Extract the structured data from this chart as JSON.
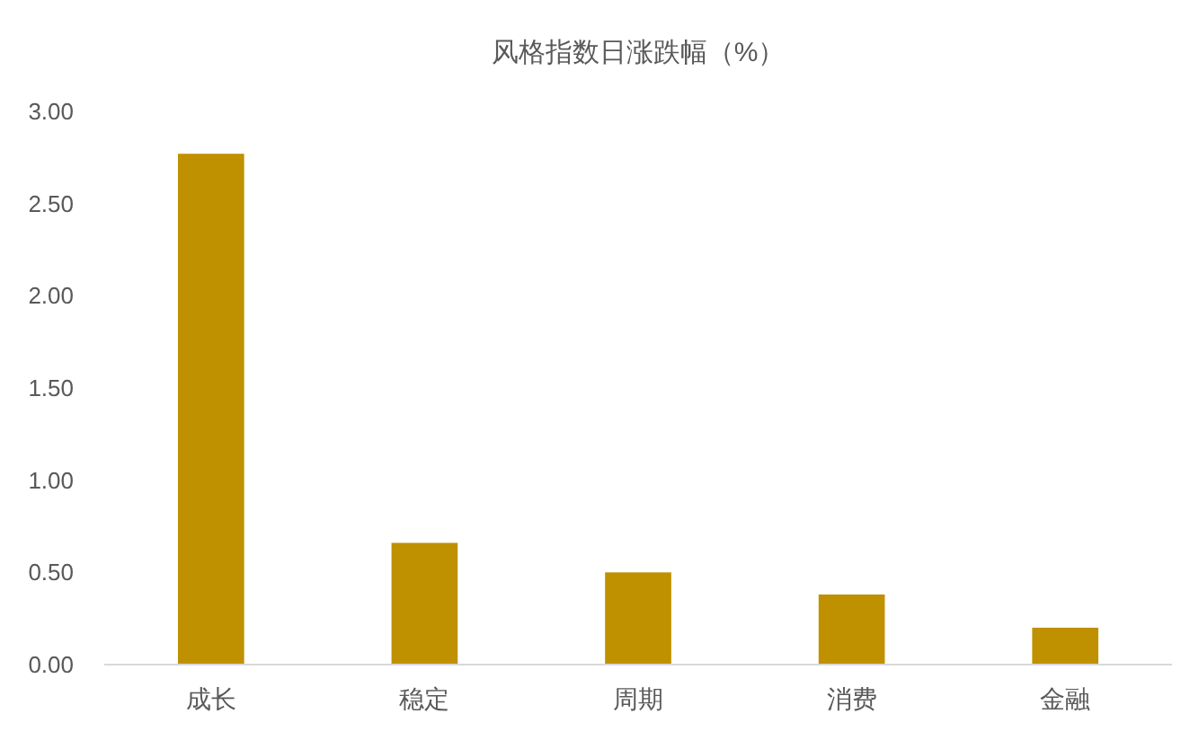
{
  "chart_data": {
    "type": "bar",
    "title": "风格指数日涨跌幅（%）",
    "categories": [
      "成长",
      "稳定",
      "周期",
      "消费",
      "金融"
    ],
    "values": [
      2.77,
      0.66,
      0.5,
      0.38,
      0.2
    ],
    "color": "#bf9000",
    "ylim": [
      0,
      3
    ],
    "yticks": [
      {
        "value": 0,
        "label": "0.00"
      },
      {
        "value": 0.5,
        "label": "0.50"
      },
      {
        "value": 1,
        "label": "1.00"
      },
      {
        "value": 1.5,
        "label": "1.50"
      },
      {
        "value": 2,
        "label": "2.00"
      },
      {
        "value": 2.5,
        "label": "2.50"
      },
      {
        "value": 3,
        "label": "3.00"
      }
    ],
    "grid": false
  }
}
